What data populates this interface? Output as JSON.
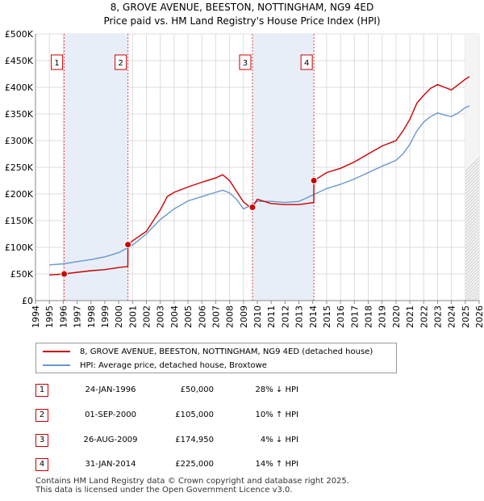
{
  "title_line1": "8, GROVE AVENUE, BEESTON, NOTTINGHAM, NG9 4ED",
  "title_line2": "Price paid vs. HM Land Registry's House Price Index (HPI)",
  "legend": {
    "property": "8, GROVE AVENUE, BEESTON, NOTTINGHAM, NG9 4ED (detached house)",
    "hpi": "HPI: Average price, detached house, Broxtowe"
  },
  "colors": {
    "property": "#cc0000",
    "hpi": "#6a97cc",
    "shade": "#e8eef8",
    "grid": "#dddddd",
    "sale_line": "#dd4444"
  },
  "transactions": [
    {
      "num": "1",
      "date": "24-JAN-1996",
      "price": "£50,000",
      "relation": "28% ↓ HPI"
    },
    {
      "num": "2",
      "date": "01-SEP-2000",
      "price": "£105,000",
      "relation": "10% ↑ HPI"
    },
    {
      "num": "3",
      "date": "26-AUG-2009",
      "price": "£174,950",
      "relation": "4% ↓ HPI"
    },
    {
      "num": "4",
      "date": "31-JAN-2014",
      "price": "£225,000",
      "relation": "14% ↑ HPI"
    }
  ],
  "footer_line1": "Contains HM Land Registry data © Crown copyright and database right 2025.",
  "footer_line2": "This data is licensed under the Open Government Licence v3.0.",
  "chart_data": {
    "type": "line",
    "title": "8, GROVE AVENUE, BEESTON, NOTTINGHAM, NG9 4ED",
    "subtitle": "Price paid vs. HM Land Registry's House Price Index (HPI)",
    "xlim": [
      1994,
      2026
    ],
    "ylim": [
      0,
      500000
    ],
    "x_ticks": [
      1994,
      1995,
      1996,
      1997,
      1998,
      1999,
      2000,
      2001,
      2002,
      2003,
      2004,
      2005,
      2006,
      2007,
      2008,
      2009,
      2010,
      2011,
      2012,
      2013,
      2014,
      2015,
      2016,
      2017,
      2018,
      2019,
      2020,
      2021,
      2022,
      2023,
      2024,
      2025,
      2026
    ],
    "y_ticks": [
      0,
      50000,
      100000,
      150000,
      200000,
      250000,
      300000,
      350000,
      400000,
      450000,
      500000
    ],
    "y_tick_labels": [
      "£0",
      "£50K",
      "£100K",
      "£150K",
      "£200K",
      "£250K",
      "£300K",
      "£350K",
      "£400K",
      "£450K",
      "£500K"
    ],
    "grid": true,
    "legend_position": "below",
    "sales": [
      {
        "label": "1",
        "x": 1996.07,
        "y": 50000
      },
      {
        "label": "2",
        "x": 2000.67,
        "y": 105000
      },
      {
        "label": "3",
        "x": 2009.65,
        "y": 174950
      },
      {
        "label": "4",
        "x": 2014.08,
        "y": 225000
      }
    ],
    "shaded_ranges": [
      [
        1996.07,
        2000.67
      ],
      [
        2009.65,
        2014.08
      ]
    ],
    "hatched_from": 2025.0,
    "series": [
      {
        "name": "8, GROVE AVENUE, BEESTON, NOTTINGHAM, NG9 4ED (detached house)",
        "x": [
          1995.0,
          1996.07,
          1997.0,
          1998.0,
          1999.0,
          2000.0,
          2000.66,
          2000.67,
          2001.0,
          2002.0,
          2003.0,
          2003.5,
          2004.0,
          2005.0,
          2006.0,
          2007.0,
          2007.5,
          2008.0,
          2008.5,
          2009.0,
          2009.64,
          2009.65,
          2010.0,
          2011.0,
          2012.0,
          2013.0,
          2014.07,
          2014.08,
          2015.0,
          2016.0,
          2017.0,
          2018.0,
          2019.0,
          2020.0,
          2020.5,
          2021.0,
          2021.5,
          2022.0,
          2022.5,
          2023.0,
          2023.5,
          2024.0,
          2024.5,
          2025.0,
          2025.3
        ],
        "y": [
          48000,
          50000,
          53000,
          56000,
          58000,
          62000,
          64000,
          105000,
          112000,
          130000,
          170000,
          195000,
          203000,
          213000,
          222000,
          230000,
          236000,
          225000,
          205000,
          185000,
          172000,
          174950,
          190000,
          182000,
          180000,
          180000,
          184000,
          225000,
          240000,
          248000,
          260000,
          275000,
          290000,
          300000,
          318000,
          340000,
          370000,
          385000,
          398000,
          405000,
          400000,
          395000,
          405000,
          415000,
          420000
        ]
      },
      {
        "name": "HPI: Average price, detached house, Broxtowe",
        "x": [
          1995.0,
          1996.0,
          1997.0,
          1998.0,
          1999.0,
          2000.0,
          2001.0,
          2002.0,
          2003.0,
          2004.0,
          2005.0,
          2006.0,
          2007.0,
          2007.5,
          2008.0,
          2008.5,
          2009.0,
          2009.5,
          2010.0,
          2011.0,
          2012.0,
          2013.0,
          2014.0,
          2015.0,
          2016.0,
          2017.0,
          2018.0,
          2019.0,
          2020.0,
          2020.5,
          2021.0,
          2021.5,
          2022.0,
          2022.5,
          2023.0,
          2023.5,
          2024.0,
          2024.5,
          2025.0,
          2025.3
        ],
        "y": [
          67000,
          69000,
          73000,
          77000,
          82000,
          90000,
          104000,
          125000,
          152000,
          172000,
          187000,
          195000,
          203000,
          207000,
          202000,
          190000,
          172000,
          178000,
          186000,
          186000,
          184000,
          186000,
          198000,
          210000,
          218000,
          228000,
          240000,
          252000,
          263000,
          275000,
          293000,
          318000,
          335000,
          345000,
          352000,
          348000,
          345000,
          352000,
          362000,
          365000
        ]
      }
    ]
  }
}
